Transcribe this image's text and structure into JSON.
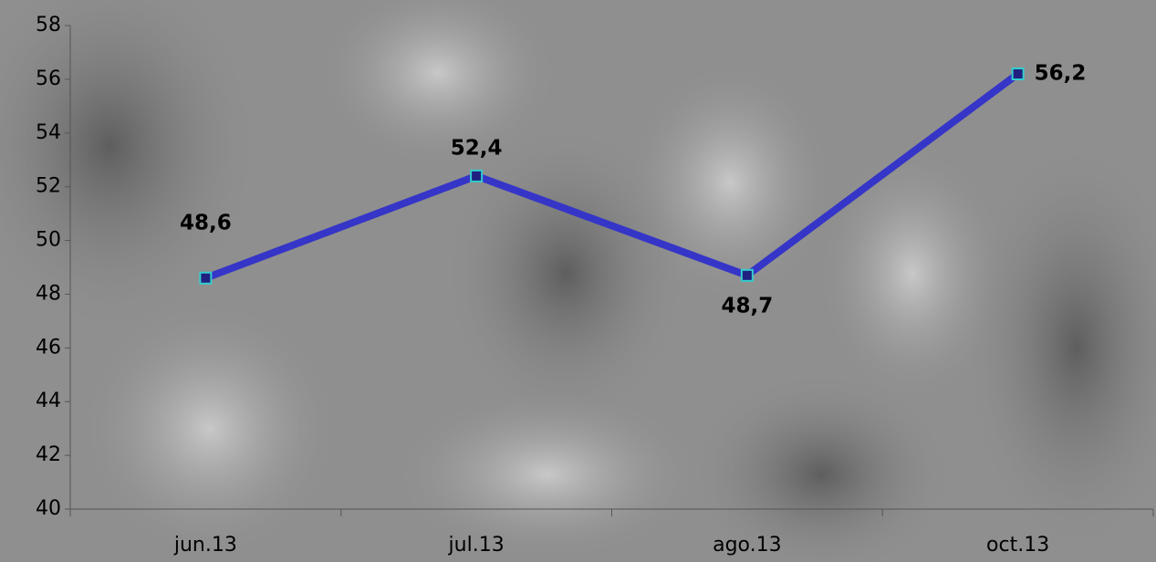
{
  "chart_data": {
    "type": "line",
    "categories": [
      "jun.13",
      "jul.13",
      "ago.13",
      "oct.13"
    ],
    "series": [
      {
        "color": "#3535c8",
        "values": [
          48.6,
          52.4,
          48.7,
          56.2
        ],
        "value_labels": [
          "48,6",
          "52,4",
          "48,7",
          "56,2"
        ]
      }
    ],
    "ylim": [
      40,
      58
    ],
    "yticks": [
      40,
      42,
      44,
      46,
      48,
      50,
      52,
      54,
      56,
      58
    ]
  }
}
